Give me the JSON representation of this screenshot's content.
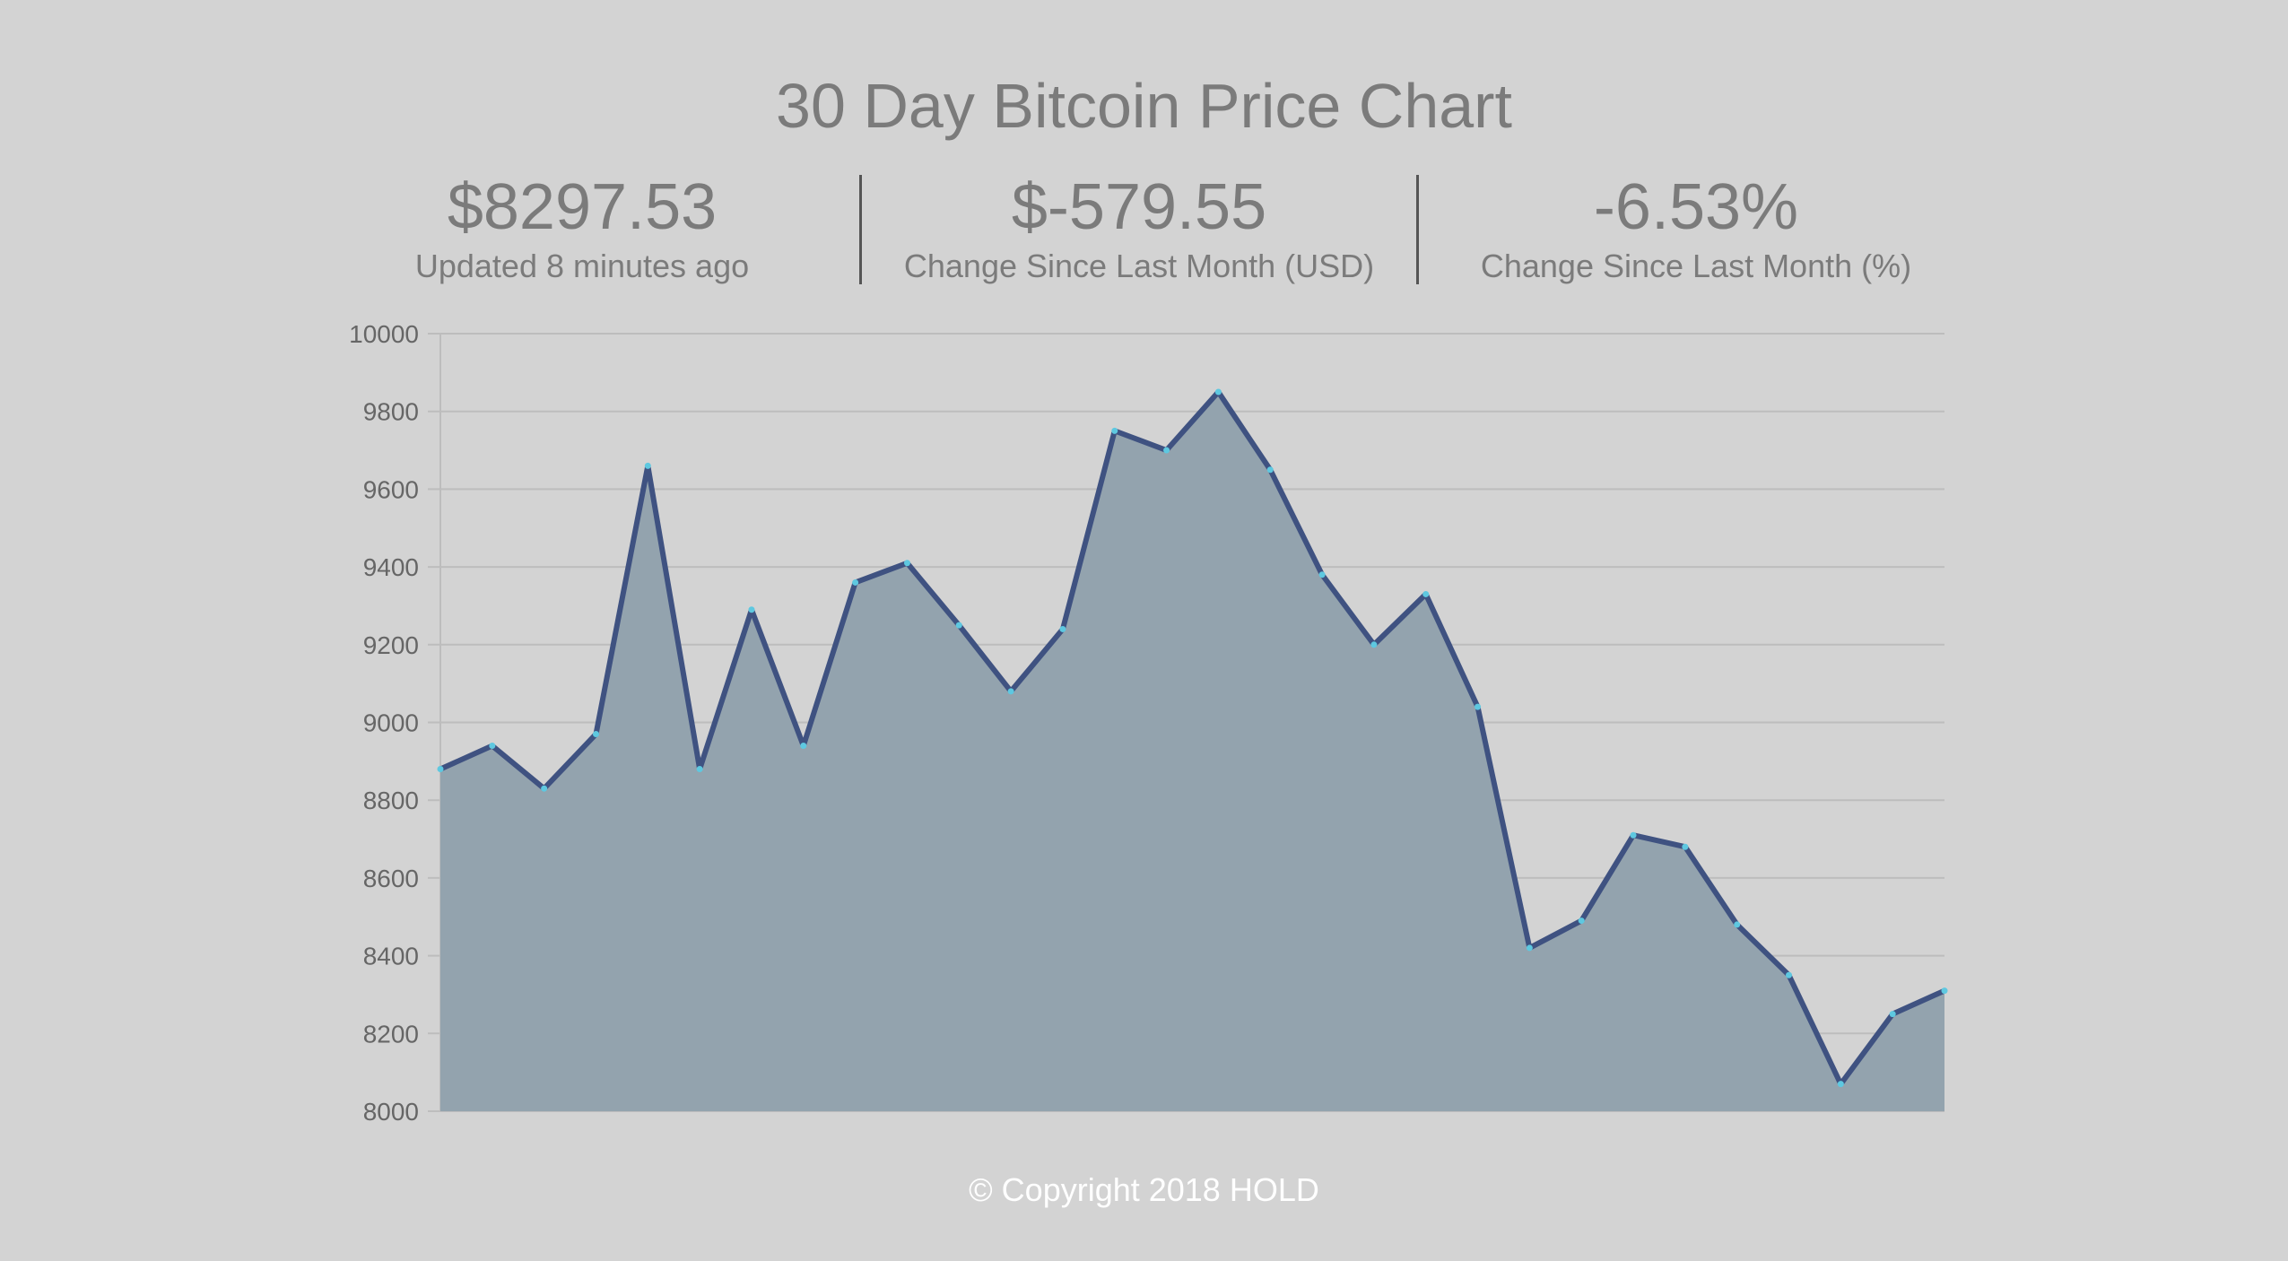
{
  "title": "30 Day Bitcoin Price Chart",
  "stats": [
    {
      "value": "$8297.53",
      "label": "Updated 8 minutes ago"
    },
    {
      "value": "$-579.55",
      "label": "Change Since Last Month (USD)"
    },
    {
      "value": "-6.53%",
      "label": "Change Since Last Month (%)"
    }
  ],
  "footer": "© Copyright 2018 HOLD",
  "colors": {
    "background": "#d3d3d3",
    "area_fill": "#93a3ae",
    "line": "#3f5281",
    "point": "#5ec8e0",
    "grid": "#bdbdbd",
    "text": "#7b7b7b"
  },
  "chart_data": {
    "type": "area",
    "title": "",
    "xlabel": "",
    "ylabel": "",
    "ylim": [
      8000,
      10000
    ],
    "yticks": [
      10000,
      9800,
      9600,
      9400,
      9200,
      9000,
      8800,
      8600,
      8400,
      8200,
      8000
    ],
    "grid": true,
    "legend": "none",
    "x": [
      1,
      2,
      3,
      4,
      5,
      6,
      7,
      8,
      9,
      10,
      11,
      12,
      13,
      14,
      15,
      16,
      17,
      18,
      19,
      20,
      21,
      22,
      23,
      24,
      25,
      26,
      27,
      28,
      29,
      30
    ],
    "values": [
      8880,
      8940,
      8830,
      8970,
      9660,
      8880,
      9290,
      8940,
      9360,
      9410,
      9250,
      9080,
      9240,
      9750,
      9700,
      9850,
      9650,
      9380,
      9200,
      9330,
      9040,
      8420,
      8490,
      8710,
      8680,
      8480,
      8350,
      8070,
      8250,
      8310
    ]
  }
}
